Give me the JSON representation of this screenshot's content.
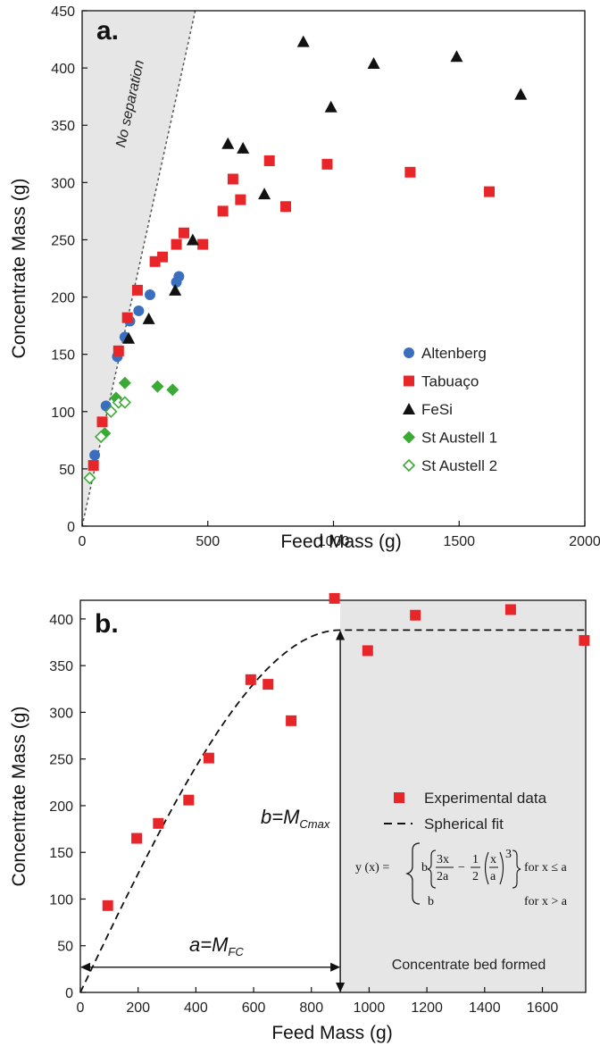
{
  "chart_data": [
    {
      "panel": "a.",
      "type": "scatter",
      "xlabel": "Feed Mass (g)",
      "ylabel": "Concentrate Mass (g)",
      "xlim": [
        0,
        2000
      ],
      "ylim": [
        0,
        450
      ],
      "xticks": [
        0,
        500,
        1000,
        1500,
        2000
      ],
      "yticks": [
        0,
        50,
        100,
        150,
        200,
        250,
        300,
        350,
        400,
        450
      ],
      "annotation": "No separation",
      "legend_position": "lower-right",
      "series": [
        {
          "name": "Altenberg",
          "marker": "circle",
          "color": "#3a6fbf",
          "x": [
            50,
            95,
            140,
            170,
            190,
            225,
            270,
            375,
            385
          ],
          "y": [
            62,
            105,
            148,
            165,
            179,
            188,
            202,
            213,
            218
          ]
        },
        {
          "name": "Tabuaço",
          "marker": "square",
          "color": "#e8262a",
          "x": [
            45,
            80,
            145,
            180,
            220,
            290,
            320,
            375,
            405,
            480,
            560,
            600,
            630,
            745,
            810,
            975,
            1305,
            1620
          ],
          "y": [
            53,
            91,
            153,
            182,
            206,
            231,
            235,
            246,
            256,
            246,
            275,
            303,
            285,
            319,
            279,
            316,
            309,
            292
          ]
        },
        {
          "name": "FeSi",
          "marker": "triangle",
          "color": "#111111",
          "x": [
            185,
            265,
            370,
            440,
            580,
            640,
            725,
            880,
            990,
            1160,
            1490,
            1745
          ],
          "y": [
            164,
            181,
            206,
            250,
            334,
            330,
            290,
            423,
            366,
            404,
            410,
            377
          ]
        },
        {
          "name": "St Austell 1",
          "marker": "diamond",
          "color": "#3aaa35",
          "x": [
            90,
            135,
            170,
            300,
            360
          ],
          "y": [
            81,
            112,
            125,
            122,
            119
          ]
        },
        {
          "name": "St Austell 2",
          "marker": "diamond-open",
          "color": "#3aaa35",
          "x": [
            30,
            75,
            115,
            145,
            170
          ],
          "y": [
            42,
            78,
            100,
            108,
            108
          ]
        }
      ]
    },
    {
      "panel": "b.",
      "type": "scatter",
      "xlabel": "Feed Mass (g)",
      "ylabel": "Concentrate Mass (g)",
      "xlim": [
        0,
        1750
      ],
      "ylim": [
        0,
        420
      ],
      "xticks": [
        0,
        200,
        400,
        600,
        800,
        1000,
        1200,
        1400,
        1600
      ],
      "yticks": [
        0,
        50,
        100,
        150,
        200,
        250,
        300,
        350,
        400
      ],
      "legend_position": "right",
      "series": [
        {
          "name": "Experimental data",
          "marker": "square",
          "color": "#e8262a",
          "x": [
            95,
            195,
            270,
            375,
            445,
            590,
            650,
            730,
            880,
            995,
            1160,
            1490,
            1745
          ],
          "y": [
            93,
            165,
            181,
            206,
            251,
            335,
            330,
            291,
            422,
            366,
            404,
            410,
            377
          ]
        },
        {
          "name": "Spherical fit",
          "line": "dashed",
          "a": 900,
          "b": 388
        }
      ],
      "annotations": {
        "b_label": "b=M",
        "b_sub": "Cmax",
        "a_label": "a=M",
        "a_sub": "FC",
        "shaded_region": "Concentrate bed formed",
        "formula_lhs": "y (x) =",
        "formula_case1": "for x ≤ a",
        "formula_case2": "for x > a",
        "formula_b": "b"
      }
    }
  ]
}
